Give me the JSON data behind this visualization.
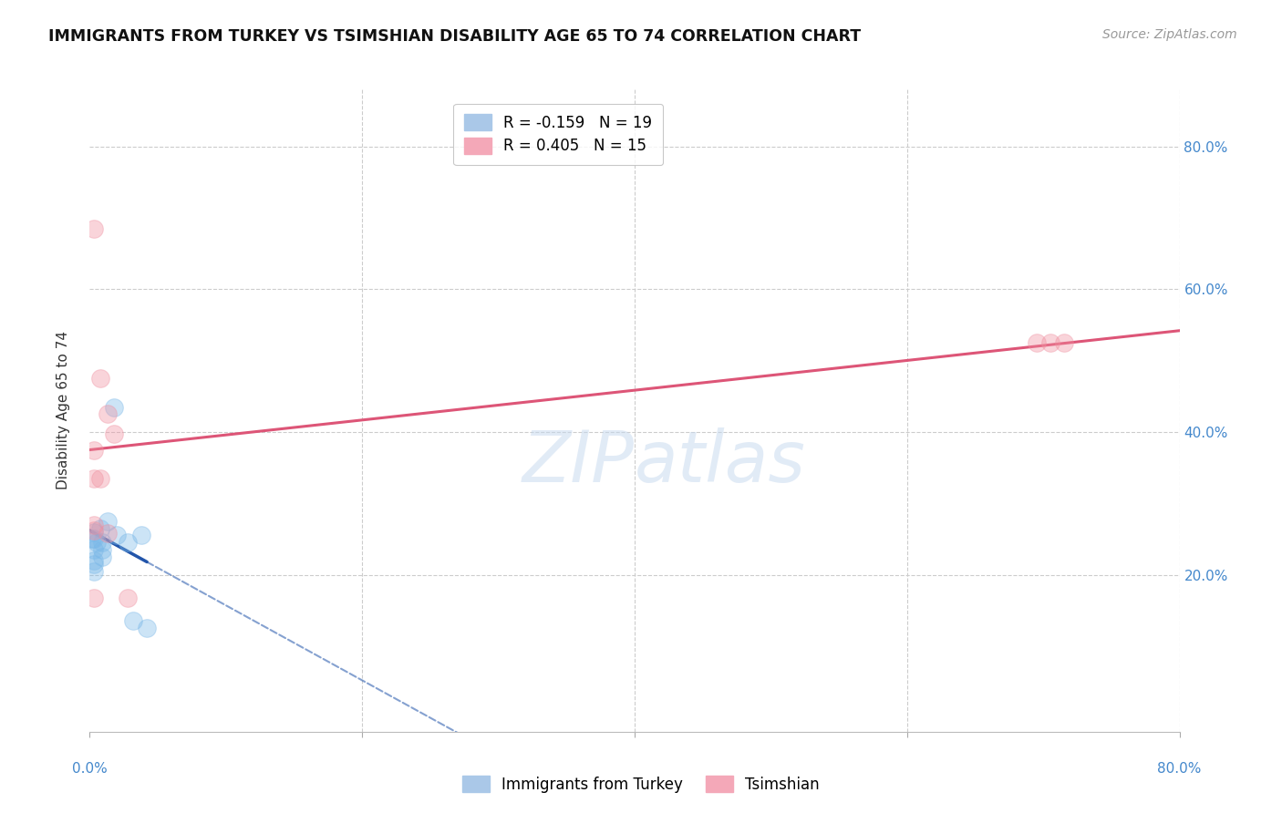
{
  "title": "IMMIGRANTS FROM TURKEY VS TSIMSHIAN DISABILITY AGE 65 TO 74 CORRELATION CHART",
  "source": "Source: ZipAtlas.com",
  "ylabel": "Disability Age 65 to 74",
  "xlim": [
    0.0,
    0.8
  ],
  "ylim": [
    0.0,
    0.88
  ],
  "yticks": [
    0.2,
    0.4,
    0.6,
    0.8
  ],
  "ytick_labels": [
    "20.0%",
    "40.0%",
    "60.0%",
    "80.0%"
  ],
  "blue_scatter_x": [
    0.008,
    0.013,
    0.009,
    0.009,
    0.009,
    0.003,
    0.005,
    0.003,
    0.003,
    0.003,
    0.003,
    0.003,
    0.002,
    0.018,
    0.02,
    0.028,
    0.038,
    0.032,
    0.042
  ],
  "blue_scatter_y": [
    0.265,
    0.275,
    0.225,
    0.245,
    0.235,
    0.235,
    0.245,
    0.25,
    0.26,
    0.22,
    0.215,
    0.205,
    0.25,
    0.435,
    0.255,
    0.245,
    0.255,
    0.135,
    0.125
  ],
  "pink_scatter_x": [
    0.003,
    0.008,
    0.013,
    0.003,
    0.003,
    0.008,
    0.003,
    0.003,
    0.013,
    0.018,
    0.003,
    0.028,
    0.695,
    0.705,
    0.715
  ],
  "pink_scatter_y": [
    0.685,
    0.475,
    0.425,
    0.375,
    0.335,
    0.335,
    0.27,
    0.262,
    0.258,
    0.398,
    0.168,
    0.168,
    0.525,
    0.525,
    0.525
  ],
  "blue_line_x0": 0.0,
  "blue_line_y0": 0.262,
  "blue_line_slope": -1.05,
  "pink_line_x0": 0.0,
  "pink_line_y0": 0.375,
  "pink_line_x1": 0.8,
  "pink_line_y1": 0.542,
  "scatter_size": 200,
  "scatter_alpha": 0.38,
  "blue_color": "#7ab8e8",
  "pink_color": "#f090a0",
  "blue_line_color": "#2255aa",
  "pink_line_color": "#dd5577",
  "watermark_line1": "ZIP",
  "watermark_line2": "atlas",
  "background_color": "#ffffff",
  "grid_color": "#cccccc",
  "legend_blue_label": "R = -0.159   N = 19",
  "legend_pink_label": "R = 0.405   N = 15",
  "bottom_blue_label": "Immigrants from Turkey",
  "bottom_pink_label": "Tsimshian",
  "title_fontsize": 12.5,
  "source_fontsize": 10,
  "tick_label_fontsize": 11,
  "legend_fontsize": 12
}
